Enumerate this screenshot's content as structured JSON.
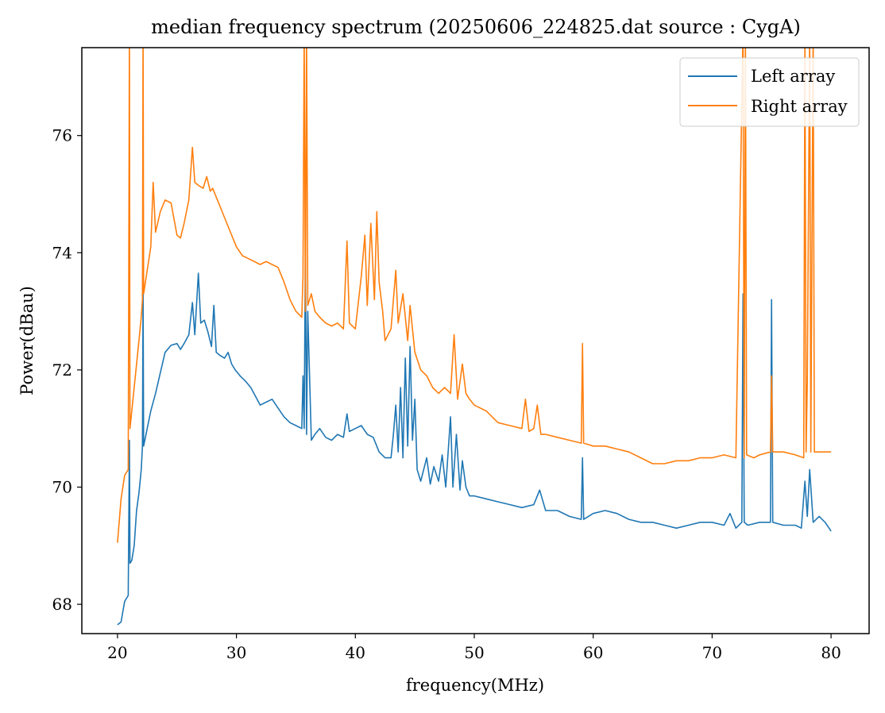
{
  "chart_data": {
    "type": "line",
    "title": "median frequency spectrum (20250606_224825.dat source : CygA)",
    "xlabel": "frequency(MHz)",
    "ylabel": "Power(dBau)",
    "xlim": [
      17,
      83.2
    ],
    "ylim": [
      67.5,
      77.5
    ],
    "xticks": [
      20,
      30,
      40,
      50,
      60,
      70,
      80
    ],
    "yticks": [
      68,
      70,
      72,
      74,
      76
    ],
    "grid": false,
    "legend_position": "top-right",
    "series": [
      {
        "name": "Left array",
        "color": "#1f77b4",
        "points": [
          [
            20.0,
            67.65
          ],
          [
            20.3,
            67.7
          ],
          [
            20.6,
            68.05
          ],
          [
            20.9,
            68.15
          ],
          [
            21.0,
            70.8
          ],
          [
            21.05,
            68.7
          ],
          [
            21.2,
            68.75
          ],
          [
            21.4,
            69.0
          ],
          [
            21.6,
            69.6
          ],
          [
            21.8,
            69.9
          ],
          [
            22.0,
            70.3
          ],
          [
            22.1,
            70.7
          ],
          [
            22.15,
            73.4
          ],
          [
            22.2,
            70.7
          ],
          [
            22.5,
            71.0
          ],
          [
            22.8,
            71.3
          ],
          [
            23.2,
            71.6
          ],
          [
            23.6,
            71.95
          ],
          [
            24.0,
            72.3
          ],
          [
            24.5,
            72.42
          ],
          [
            25.0,
            72.45
          ],
          [
            25.3,
            72.35
          ],
          [
            25.6,
            72.45
          ],
          [
            26.0,
            72.6
          ],
          [
            26.3,
            73.15
          ],
          [
            26.5,
            72.6
          ],
          [
            26.8,
            73.65
          ],
          [
            27.0,
            72.8
          ],
          [
            27.3,
            72.85
          ],
          [
            27.6,
            72.65
          ],
          [
            27.9,
            72.4
          ],
          [
            28.1,
            73.1
          ],
          [
            28.3,
            72.3
          ],
          [
            28.6,
            72.25
          ],
          [
            29.0,
            72.2
          ],
          [
            29.3,
            72.3
          ],
          [
            29.6,
            72.1
          ],
          [
            29.9,
            72.0
          ],
          [
            30.3,
            71.9
          ],
          [
            30.8,
            71.8
          ],
          [
            31.2,
            71.7
          ],
          [
            31.6,
            71.55
          ],
          [
            32.0,
            71.4
          ],
          [
            32.5,
            71.45
          ],
          [
            33.0,
            71.5
          ],
          [
            33.5,
            71.35
          ],
          [
            34.0,
            71.2
          ],
          [
            34.5,
            71.1
          ],
          [
            35.0,
            71.05
          ],
          [
            35.5,
            71.0
          ],
          [
            35.6,
            71.9
          ],
          [
            35.7,
            71.0
          ],
          [
            35.8,
            74.1
          ],
          [
            35.9,
            70.9
          ],
          [
            36.0,
            73.0
          ],
          [
            36.3,
            70.8
          ],
          [
            36.6,
            70.9
          ],
          [
            37.0,
            71.0
          ],
          [
            37.5,
            70.85
          ],
          [
            38.0,
            70.8
          ],
          [
            38.5,
            70.9
          ],
          [
            39.0,
            70.85
          ],
          [
            39.3,
            71.25
          ],
          [
            39.5,
            70.95
          ],
          [
            40.0,
            71.0
          ],
          [
            40.5,
            71.05
          ],
          [
            41.0,
            70.9
          ],
          [
            41.5,
            70.85
          ],
          [
            42.0,
            70.6
          ],
          [
            42.5,
            70.5
          ],
          [
            43.0,
            70.5
          ],
          [
            43.2,
            70.9
          ],
          [
            43.4,
            71.4
          ],
          [
            43.6,
            70.6
          ],
          [
            43.8,
            71.7
          ],
          [
            44.0,
            70.5
          ],
          [
            44.2,
            72.2
          ],
          [
            44.4,
            70.7
          ],
          [
            44.6,
            72.4
          ],
          [
            44.8,
            70.8
          ],
          [
            45.0,
            71.5
          ],
          [
            45.2,
            70.3
          ],
          [
            45.5,
            70.1
          ],
          [
            46.0,
            70.5
          ],
          [
            46.3,
            70.05
          ],
          [
            46.6,
            70.35
          ],
          [
            47.0,
            70.1
          ],
          [
            47.3,
            70.55
          ],
          [
            47.6,
            70.0
          ],
          [
            48.0,
            71.2
          ],
          [
            48.2,
            70.0
          ],
          [
            48.5,
            70.9
          ],
          [
            48.8,
            69.95
          ],
          [
            49.0,
            70.45
          ],
          [
            49.3,
            70.0
          ],
          [
            49.6,
            69.85
          ],
          [
            50.0,
            69.85
          ],
          [
            51.0,
            69.8
          ],
          [
            52.0,
            69.75
          ],
          [
            53.0,
            69.7
          ],
          [
            54.0,
            69.65
          ],
          [
            55.0,
            69.7
          ],
          [
            55.5,
            69.95
          ],
          [
            56.0,
            69.6
          ],
          [
            57.0,
            69.6
          ],
          [
            58.0,
            69.5
          ],
          [
            59.0,
            69.45
          ],
          [
            59.1,
            70.5
          ],
          [
            59.2,
            69.45
          ],
          [
            60.0,
            69.55
          ],
          [
            61.0,
            69.6
          ],
          [
            62.0,
            69.55
          ],
          [
            63.0,
            69.45
          ],
          [
            64.0,
            69.4
          ],
          [
            65.0,
            69.4
          ],
          [
            66.0,
            69.35
          ],
          [
            67.0,
            69.3
          ],
          [
            68.0,
            69.35
          ],
          [
            69.0,
            69.4
          ],
          [
            70.0,
            69.4
          ],
          [
            71.0,
            69.35
          ],
          [
            71.5,
            69.55
          ],
          [
            72.0,
            69.3
          ],
          [
            72.5,
            69.4
          ],
          [
            72.6,
            73.3
          ],
          [
            72.7,
            69.4
          ],
          [
            73.0,
            69.35
          ],
          [
            74.0,
            69.4
          ],
          [
            74.9,
            69.4
          ],
          [
            75.0,
            73.2
          ],
          [
            75.1,
            69.4
          ],
          [
            76.0,
            69.35
          ],
          [
            77.0,
            69.35
          ],
          [
            77.5,
            69.3
          ],
          [
            77.8,
            70.1
          ],
          [
            78.0,
            69.5
          ],
          [
            78.2,
            70.3
          ],
          [
            78.5,
            69.4
          ],
          [
            79.0,
            69.5
          ],
          [
            79.5,
            69.4
          ],
          [
            80.0,
            69.25
          ]
        ]
      },
      {
        "name": "Right array",
        "color": "#ff7f0e",
        "points": [
          [
            20.0,
            69.05
          ],
          [
            20.3,
            69.8
          ],
          [
            20.6,
            70.2
          ],
          [
            20.9,
            70.3
          ],
          [
            21.0,
            77.8
          ],
          [
            21.05,
            71.0
          ],
          [
            21.2,
            71.3
          ],
          [
            21.4,
            71.7
          ],
          [
            21.6,
            72.1
          ],
          [
            21.8,
            72.5
          ],
          [
            22.0,
            72.9
          ],
          [
            22.1,
            73.2
          ],
          [
            22.15,
            77.8
          ],
          [
            22.2,
            73.3
          ],
          [
            22.5,
            73.7
          ],
          [
            22.8,
            74.1
          ],
          [
            23.0,
            75.2
          ],
          [
            23.2,
            74.35
          ],
          [
            23.6,
            74.7
          ],
          [
            24.0,
            74.9
          ],
          [
            24.5,
            74.85
          ],
          [
            25.0,
            74.3
          ],
          [
            25.3,
            74.25
          ],
          [
            25.6,
            74.5
          ],
          [
            26.0,
            74.9
          ],
          [
            26.3,
            75.8
          ],
          [
            26.5,
            75.2
          ],
          [
            26.8,
            75.15
          ],
          [
            27.2,
            75.1
          ],
          [
            27.5,
            75.3
          ],
          [
            27.8,
            75.05
          ],
          [
            28.0,
            75.1
          ],
          [
            28.5,
            74.85
          ],
          [
            29.0,
            74.6
          ],
          [
            29.5,
            74.35
          ],
          [
            30.0,
            74.1
          ],
          [
            30.5,
            73.95
          ],
          [
            31.0,
            73.9
          ],
          [
            31.5,
            73.85
          ],
          [
            32.0,
            73.8
          ],
          [
            32.5,
            73.85
          ],
          [
            33.0,
            73.8
          ],
          [
            33.5,
            73.75
          ],
          [
            34.0,
            73.5
          ],
          [
            34.5,
            73.2
          ],
          [
            35.0,
            73.0
          ],
          [
            35.5,
            72.9
          ],
          [
            35.6,
            73.6
          ],
          [
            35.7,
            77.8
          ],
          [
            35.8,
            73.0
          ],
          [
            35.9,
            77.8
          ],
          [
            36.0,
            73.1
          ],
          [
            36.3,
            73.3
          ],
          [
            36.6,
            73.0
          ],
          [
            37.0,
            72.9
          ],
          [
            37.5,
            72.8
          ],
          [
            38.0,
            72.75
          ],
          [
            38.5,
            72.8
          ],
          [
            39.0,
            72.7
          ],
          [
            39.3,
            74.2
          ],
          [
            39.5,
            72.8
          ],
          [
            40.0,
            72.7
          ],
          [
            40.5,
            73.6
          ],
          [
            40.8,
            74.3
          ],
          [
            41.0,
            73.1
          ],
          [
            41.3,
            74.5
          ],
          [
            41.6,
            73.2
          ],
          [
            41.8,
            74.7
          ],
          [
            42.0,
            73.5
          ],
          [
            42.3,
            73.0
          ],
          [
            42.5,
            72.5
          ],
          [
            43.0,
            72.7
          ],
          [
            43.4,
            73.7
          ],
          [
            43.6,
            72.8
          ],
          [
            44.0,
            73.3
          ],
          [
            44.4,
            72.5
          ],
          [
            44.6,
            73.1
          ],
          [
            45.0,
            72.3
          ],
          [
            45.5,
            72.0
          ],
          [
            46.0,
            71.9
          ],
          [
            46.5,
            71.7
          ],
          [
            47.0,
            71.6
          ],
          [
            47.5,
            71.7
          ],
          [
            48.0,
            71.6
          ],
          [
            48.3,
            72.6
          ],
          [
            48.6,
            71.5
          ],
          [
            49.0,
            72.1
          ],
          [
            49.3,
            71.6
          ],
          [
            49.6,
            71.5
          ],
          [
            50.0,
            71.4
          ],
          [
            51.0,
            71.3
          ],
          [
            52.0,
            71.1
          ],
          [
            53.0,
            71.05
          ],
          [
            54.0,
            71.0
          ],
          [
            54.3,
            71.5
          ],
          [
            54.6,
            70.95
          ],
          [
            55.0,
            71.0
          ],
          [
            55.3,
            71.4
          ],
          [
            55.6,
            70.9
          ],
          [
            56.0,
            70.9
          ],
          [
            57.0,
            70.85
          ],
          [
            58.0,
            70.8
          ],
          [
            59.0,
            70.75
          ],
          [
            59.1,
            72.45
          ],
          [
            59.2,
            70.75
          ],
          [
            60.0,
            70.7
          ],
          [
            61.0,
            70.7
          ],
          [
            62.0,
            70.65
          ],
          [
            63.0,
            70.6
          ],
          [
            64.0,
            70.5
          ],
          [
            65.0,
            70.4
          ],
          [
            66.0,
            70.4
          ],
          [
            67.0,
            70.45
          ],
          [
            68.0,
            70.45
          ],
          [
            69.0,
            70.5
          ],
          [
            70.0,
            70.5
          ],
          [
            71.0,
            70.55
          ],
          [
            72.0,
            70.5
          ],
          [
            72.6,
            77.8
          ],
          [
            72.7,
            70.5
          ],
          [
            72.8,
            77.8
          ],
          [
            72.9,
            70.55
          ],
          [
            73.5,
            70.5
          ],
          [
            74.0,
            70.55
          ],
          [
            74.9,
            70.6
          ],
          [
            75.0,
            71.9
          ],
          [
            75.1,
            70.6
          ],
          [
            76.0,
            70.6
          ],
          [
            77.0,
            70.55
          ],
          [
            77.7,
            70.5
          ],
          [
            77.8,
            77.8
          ],
          [
            77.9,
            70.6
          ],
          [
            78.0,
            71.8
          ],
          [
            78.2,
            77.8
          ],
          [
            78.3,
            70.6
          ],
          [
            78.5,
            77.8
          ],
          [
            78.6,
            70.6
          ],
          [
            79.0,
            70.6
          ],
          [
            79.5,
            70.6
          ],
          [
            80.0,
            70.6
          ]
        ]
      }
    ]
  }
}
